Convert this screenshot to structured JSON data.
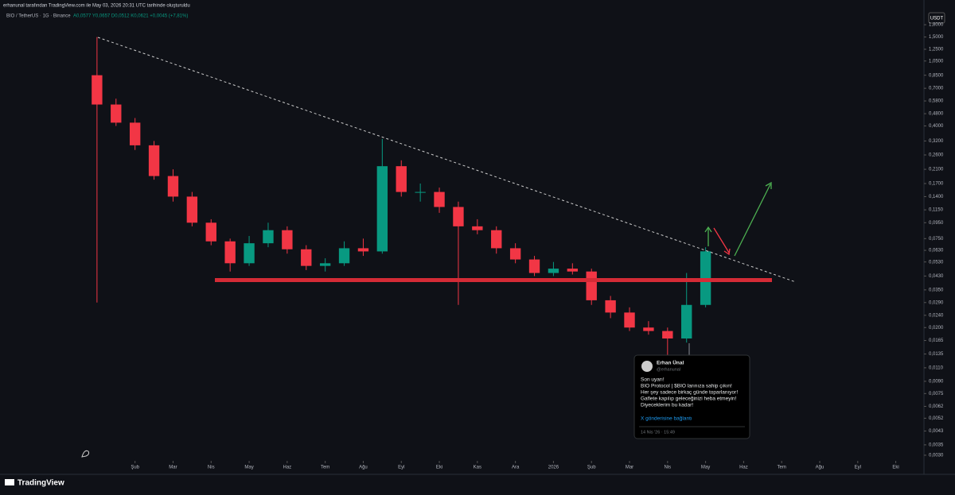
{
  "header": {
    "caption": "erhanunal tarafından TradingView.com ile May 03, 2026 20:31 UTC tarihinde oluşturuldu",
    "symbol": "BIO / TetherUS · 1G · Binance",
    "ohlc": "A0,0577 Y0,0657 D0,0512 K0,0621 +0,0045 (+7,81%)",
    "currency": "USDT",
    "brand": "TradingView"
  },
  "chart_data": {
    "type": "candlestick",
    "log_scale": true,
    "up_color": "#089981",
    "down_color": "#f23645",
    "x": [
      0,
      0.5,
      1,
      1.5,
      2,
      2.5,
      3,
      3.5,
      4,
      4.5,
      5,
      5.5,
      6,
      6.5,
      7,
      7.5,
      8,
      8.5,
      9,
      9.5,
      10,
      10.5,
      11,
      11.5,
      12,
      12.5,
      13,
      13.5,
      14,
      14.5,
      15,
      15.5,
      16
    ],
    "open": [
      0.85,
      0.55,
      0.42,
      0.3,
      0.19,
      0.14,
      0.095,
      0.072,
      0.052,
      0.07,
      0.085,
      0.064,
      0.05,
      0.052,
      0.065,
      0.062,
      0.22,
      0.15,
      0.15,
      0.12,
      0.09,
      0.085,
      0.065,
      0.055,
      0.045,
      0.048,
      0.046,
      0.03,
      0.025,
      0.02,
      0.019,
      0.017,
      0.028
    ],
    "high": [
      1.5,
      0.6,
      0.45,
      0.32,
      0.21,
      0.15,
      0.1,
      0.075,
      0.078,
      0.095,
      0.09,
      0.068,
      0.056,
      0.072,
      0.075,
      0.33,
      0.24,
      0.17,
      0.16,
      0.13,
      0.1,
      0.09,
      0.07,
      0.058,
      0.053,
      0.052,
      0.048,
      0.032,
      0.027,
      0.022,
      0.02,
      0.045,
      0.066
    ],
    "low": [
      0.029,
      0.4,
      0.28,
      0.18,
      0.13,
      0.09,
      0.068,
      0.046,
      0.05,
      0.066,
      0.06,
      0.047,
      0.046,
      0.05,
      0.058,
      0.06,
      0.14,
      0.13,
      0.11,
      0.028,
      0.08,
      0.06,
      0.052,
      0.043,
      0.043,
      0.044,
      0.028,
      0.023,
      0.019,
      0.018,
      0.012,
      0.016,
      0.027
    ],
    "close": [
      0.55,
      0.42,
      0.3,
      0.19,
      0.14,
      0.095,
      0.072,
      0.052,
      0.07,
      0.085,
      0.064,
      0.05,
      0.052,
      0.065,
      0.062,
      0.22,
      0.15,
      0.15,
      0.12,
      0.09,
      0.085,
      0.065,
      0.055,
      0.045,
      0.048,
      0.046,
      0.03,
      0.025,
      0.02,
      0.019,
      0.017,
      0.028,
      0.0621
    ],
    "xlim": [
      -2.55,
      21.72
    ],
    "ylim": [
      0.00276,
      2.31
    ],
    "xticks": [
      {
        "value": 1,
        "label": "Şub"
      },
      {
        "value": 2,
        "label": "Mar"
      },
      {
        "value": 3,
        "label": "Nis"
      },
      {
        "value": 4,
        "label": "May"
      },
      {
        "value": 5,
        "label": "Haz"
      },
      {
        "value": 6,
        "label": "Tem"
      },
      {
        "value": 7,
        "label": "Ağu"
      },
      {
        "value": 8,
        "label": "Eyl"
      },
      {
        "value": 9,
        "label": "Eki"
      },
      {
        "value": 10,
        "label": "Kas"
      },
      {
        "value": 11,
        "label": "Ara"
      },
      {
        "value": 12,
        "label": "2026"
      },
      {
        "value": 13,
        "label": "Şub"
      },
      {
        "value": 14,
        "label": "Mar"
      },
      {
        "value": 15,
        "label": "Nis"
      },
      {
        "value": 16,
        "label": "May"
      },
      {
        "value": 17,
        "label": "Haz"
      },
      {
        "value": 18,
        "label": "Tem"
      },
      {
        "value": 19,
        "label": "Ağu"
      },
      {
        "value": 20,
        "label": "Eyl"
      },
      {
        "value": 21,
        "label": "Eki"
      }
    ],
    "yticks": [
      {
        "value": 1.8,
        "label": "1,8000"
      },
      {
        "value": 1.5,
        "label": "1,5000"
      },
      {
        "value": 1.25,
        "label": "1,2500"
      },
      {
        "value": 1.05,
        "label": "1,0500"
      },
      {
        "value": 0.85,
        "label": "0,8500"
      },
      {
        "value": 0.7,
        "label": "0,7000"
      },
      {
        "value": 0.58,
        "label": "0,5800"
      },
      {
        "value": 0.48,
        "label": "0,4800"
      },
      {
        "value": 0.4,
        "label": "0,4000"
      },
      {
        "value": 0.32,
        "label": "0,3200"
      },
      {
        "value": 0.26,
        "label": "0,2600"
      },
      {
        "value": 0.21,
        "label": "0,2100"
      },
      {
        "value": 0.17,
        "label": "0,1700"
      },
      {
        "value": 0.14,
        "label": "0,1400"
      },
      {
        "value": 0.115,
        "label": "0,1150"
      },
      {
        "value": 0.095,
        "label": "0,0950"
      },
      {
        "value": 0.075,
        "label": "0,0750"
      },
      {
        "value": 0.063,
        "label": "0,0630"
      },
      {
        "value": 0.053,
        "label": "0,0530"
      },
      {
        "value": 0.043,
        "label": "0,0430"
      },
      {
        "value": 0.035,
        "label": "0,0350"
      },
      {
        "value": 0.029,
        "label": "0,0290"
      },
      {
        "value": 0.024,
        "label": "0,0240"
      },
      {
        "value": 0.02,
        "label": "0,0200"
      },
      {
        "value": 0.0165,
        "label": "0,0165"
      },
      {
        "value": 0.0135,
        "label": "0,0135"
      },
      {
        "value": 0.011,
        "label": "0,0110"
      },
      {
        "value": 0.009,
        "label": "0,0090"
      },
      {
        "value": 0.0075,
        "label": "0,0075"
      },
      {
        "value": 0.0062,
        "label": "0,0062"
      },
      {
        "value": 0.0052,
        "label": "0,0052"
      },
      {
        "value": 0.0043,
        "label": "0,0043"
      },
      {
        "value": 0.0035,
        "label": "0,0035"
      },
      {
        "value": 0.003,
        "label": "0,0030"
      }
    ]
  },
  "tweet": {
    "name": "Erhan Ünal",
    "handle": "@erhanunal",
    "lines": [
      "Son uyarı!",
      "BIO Protocol | $BIO larınıza sahip çıkın!",
      "Her şey sadece birkaç günde toparlanıyor!",
      "Gaflete kapılıp geleceğinizi heba etmeyin!",
      "Diyeceklerim bu kadar!"
    ],
    "link": "X gönderisine bağlantı",
    "date": "14 Nis '26 · 15:49"
  }
}
